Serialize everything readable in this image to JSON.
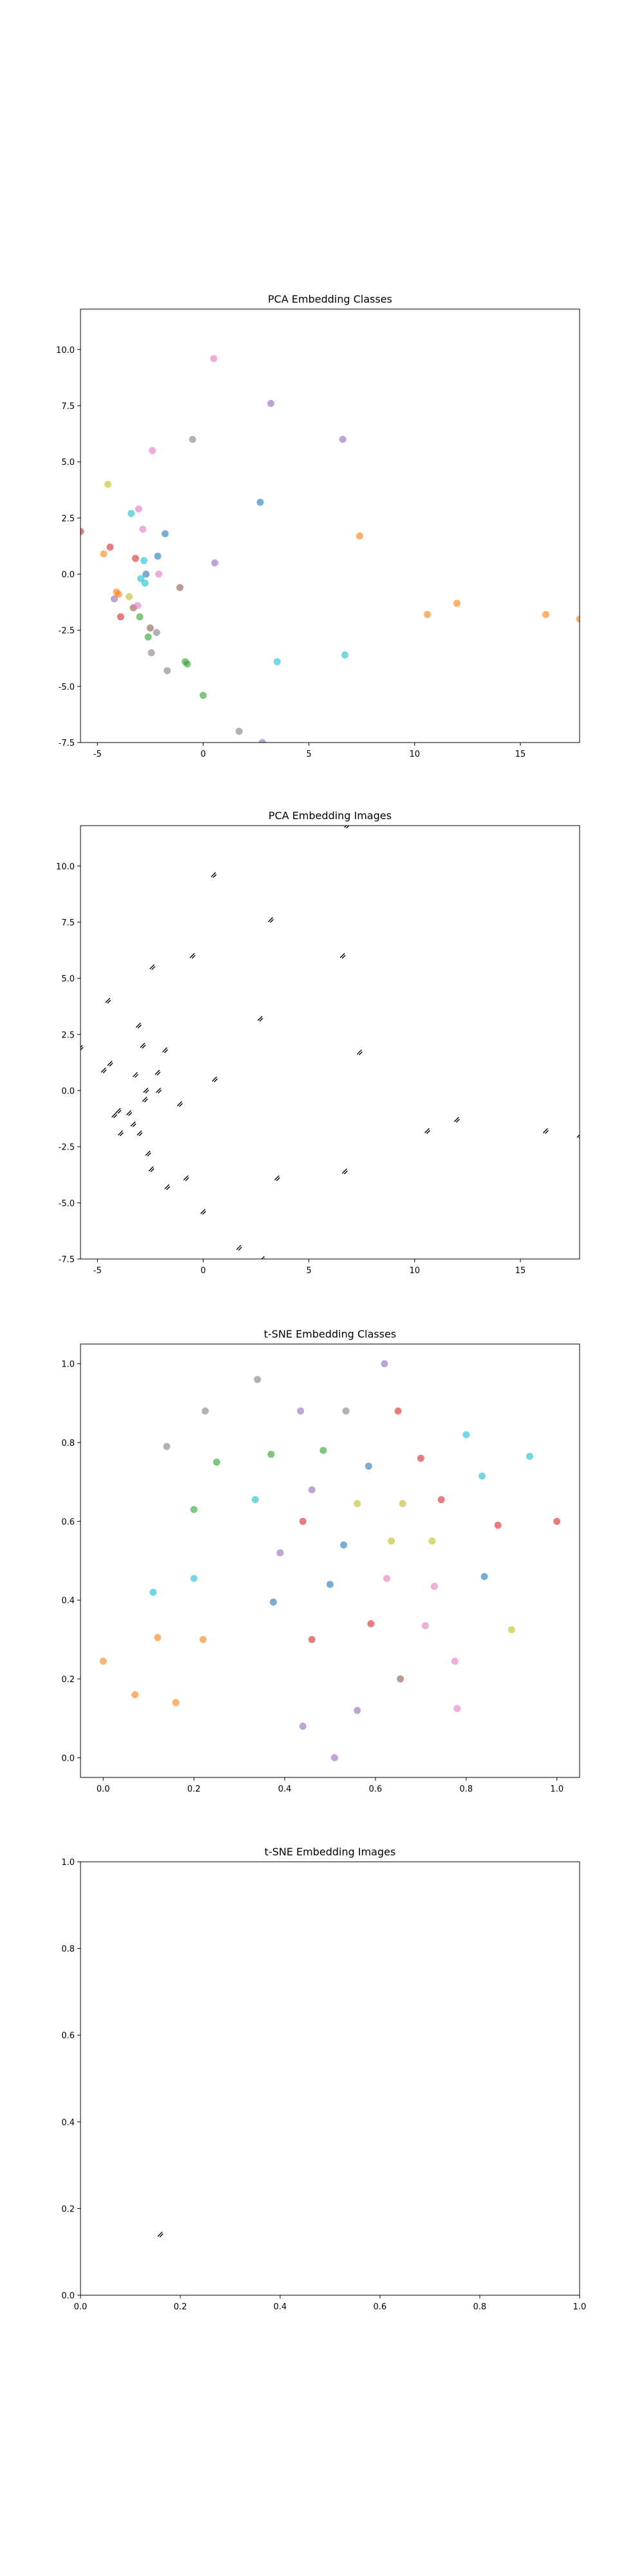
{
  "chart_data": [
    {
      "type": "scatter",
      "title": "PCA Embedding Classes",
      "xlim": [
        -5.8,
        17.8
      ],
      "ylim": [
        -7.5,
        11.8
      ],
      "xticks": [
        -5,
        0,
        5,
        10,
        15
      ],
      "yticks": [
        -7.5,
        -5.0,
        -2.5,
        0.0,
        2.5,
        5.0,
        7.5,
        10.0
      ],
      "grid": false,
      "points": [
        {
          "x": -5.8,
          "y": 1.9,
          "color": "#d62728"
        },
        {
          "x": -4.7,
          "y": 0.9,
          "color": "#ff7f0e"
        },
        {
          "x": -4.5,
          "y": 4.0,
          "color": "#bcbd22"
        },
        {
          "x": -4.4,
          "y": 1.2,
          "color": "#d62728"
        },
        {
          "x": -4.2,
          "y": -1.1,
          "color": "#9467bd"
        },
        {
          "x": -4.1,
          "y": -0.8,
          "color": "#ff7f0e"
        },
        {
          "x": -4.0,
          "y": -0.9,
          "color": "#ff7f0e"
        },
        {
          "x": -3.9,
          "y": -1.9,
          "color": "#d62728"
        },
        {
          "x": -3.5,
          "y": -1.0,
          "color": "#bcbd22"
        },
        {
          "x": -3.4,
          "y": 2.7,
          "color": "#17becf"
        },
        {
          "x": -3.3,
          "y": -1.5,
          "color": "#8c564b"
        },
        {
          "x": -3.2,
          "y": 0.7,
          "color": "#d62728"
        },
        {
          "x": -3.1,
          "y": -1.4,
          "color": "#e377c2"
        },
        {
          "x": -3.05,
          "y": 2.9,
          "color": "#e377c2"
        },
        {
          "x": -3.0,
          "y": -1.9,
          "color": "#2ca02c"
        },
        {
          "x": -2.95,
          "y": -0.2,
          "color": "#17becf"
        },
        {
          "x": -2.85,
          "y": 2.0,
          "color": "#e377c2"
        },
        {
          "x": -2.8,
          "y": 0.6,
          "color": "#17becf"
        },
        {
          "x": -2.75,
          "y": -0.4,
          "color": "#17becf"
        },
        {
          "x": -2.7,
          "y": 0.0,
          "color": "#1f77b4"
        },
        {
          "x": -2.6,
          "y": -2.8,
          "color": "#2ca02c"
        },
        {
          "x": -2.5,
          "y": -2.4,
          "color": "#8c564b"
        },
        {
          "x": -2.45,
          "y": -3.5,
          "color": "#7f7f7f"
        },
        {
          "x": -2.4,
          "y": 5.5,
          "color": "#e377c2"
        },
        {
          "x": -2.2,
          "y": -2.6,
          "color": "#7f7f7f"
        },
        {
          "x": -2.15,
          "y": 0.8,
          "color": "#1f77b4"
        },
        {
          "x": -2.1,
          "y": 0.0,
          "color": "#e377c2"
        },
        {
          "x": -1.8,
          "y": 1.8,
          "color": "#1f77b4"
        },
        {
          "x": -1.7,
          "y": -4.3,
          "color": "#7f7f7f"
        },
        {
          "x": -1.1,
          "y": -0.6,
          "color": "#8c564b"
        },
        {
          "x": -0.85,
          "y": -3.9,
          "color": "#2ca02c"
        },
        {
          "x": -0.75,
          "y": -4.0,
          "color": "#2ca02c"
        },
        {
          "x": -0.5,
          "y": 6.0,
          "color": "#7f7f7f"
        },
        {
          "x": 0.0,
          "y": -5.4,
          "color": "#2ca02c"
        },
        {
          "x": 0.5,
          "y": 9.6,
          "color": "#e377c2"
        },
        {
          "x": 0.55,
          "y": 0.5,
          "color": "#9467bd"
        },
        {
          "x": 1.7,
          "y": -7.0,
          "color": "#7f7f7f"
        },
        {
          "x": 2.7,
          "y": 3.2,
          "color": "#1f77b4"
        },
        {
          "x": 2.8,
          "y": -7.5,
          "color": "#9467bd"
        },
        {
          "x": 3.2,
          "y": 7.6,
          "color": "#9467bd"
        },
        {
          "x": 3.5,
          "y": -3.9,
          "color": "#17becf"
        },
        {
          "x": 6.6,
          "y": 6.0,
          "color": "#9467bd"
        },
        {
          "x": 6.7,
          "y": -3.6,
          "color": "#17becf"
        },
        {
          "x": 7.4,
          "y": 1.7,
          "color": "#ff7f0e"
        },
        {
          "x": 10.6,
          "y": -1.8,
          "color": "#ff7f0e"
        },
        {
          "x": 12.0,
          "y": -1.3,
          "color": "#ff7f0e"
        },
        {
          "x": 16.2,
          "y": -1.8,
          "color": "#ff7f0e"
        },
        {
          "x": 17.8,
          "y": -2.0,
          "color": "#ff7f0e"
        }
      ]
    },
    {
      "type": "scatter",
      "title": "PCA Embedding Images",
      "xlim": [
        -5.8,
        17.8
      ],
      "ylim": [
        -7.5,
        11.8
      ],
      "xticks": [
        -5,
        0,
        5,
        10,
        15
      ],
      "yticks": [
        -7.5,
        -5.0,
        -2.5,
        0.0,
        2.5,
        5.0,
        7.5,
        10.0
      ],
      "grid": false,
      "marker": "glyph",
      "points": [
        {
          "x": -5.8,
          "y": 1.9
        },
        {
          "x": -4.7,
          "y": 0.9
        },
        {
          "x": -4.5,
          "y": 4.0
        },
        {
          "x": -4.4,
          "y": 1.2
        },
        {
          "x": -4.2,
          "y": -1.1
        },
        {
          "x": -4.0,
          "y": -0.9
        },
        {
          "x": -3.9,
          "y": -1.9
        },
        {
          "x": -3.5,
          "y": -1.0
        },
        {
          "x": -3.3,
          "y": -1.5
        },
        {
          "x": -3.2,
          "y": 0.7
        },
        {
          "x": -3.05,
          "y": 2.9
        },
        {
          "x": -3.0,
          "y": -1.9
        },
        {
          "x": -2.85,
          "y": 2.0
        },
        {
          "x": -2.75,
          "y": -0.4
        },
        {
          "x": -2.7,
          "y": 0.0
        },
        {
          "x": -2.6,
          "y": -2.8
        },
        {
          "x": -2.45,
          "y": -3.5
        },
        {
          "x": -2.4,
          "y": 5.5
        },
        {
          "x": -2.15,
          "y": 0.8
        },
        {
          "x": -2.1,
          "y": 0.0
        },
        {
          "x": -1.8,
          "y": 1.8
        },
        {
          "x": -1.7,
          "y": -4.3
        },
        {
          "x": -1.1,
          "y": -0.6
        },
        {
          "x": -0.8,
          "y": -3.9
        },
        {
          "x": -0.5,
          "y": 6.0
        },
        {
          "x": 0.0,
          "y": -5.4
        },
        {
          "x": 0.5,
          "y": 9.6
        },
        {
          "x": 0.55,
          "y": 0.5
        },
        {
          "x": 1.7,
          "y": -7.0
        },
        {
          "x": 2.7,
          "y": 3.2
        },
        {
          "x": 2.8,
          "y": -7.5
        },
        {
          "x": 3.2,
          "y": 7.6
        },
        {
          "x": 3.5,
          "y": -3.9
        },
        {
          "x": 6.6,
          "y": 6.0
        },
        {
          "x": 6.7,
          "y": -3.6
        },
        {
          "x": 7.4,
          "y": 1.7
        },
        {
          "x": 10.6,
          "y": -1.8
        },
        {
          "x": 12.0,
          "y": -1.3
        },
        {
          "x": 16.2,
          "y": -1.8
        },
        {
          "x": 17.8,
          "y": -2.0
        },
        {
          "x": 6.8,
          "y": 11.8
        }
      ]
    },
    {
      "type": "scatter",
      "title": "t-SNE Embedding Classes",
      "xlim": [
        -0.05,
        1.05
      ],
      "ylim": [
        -0.05,
        1.05
      ],
      "xticks": [
        0.0,
        0.2,
        0.4,
        0.6,
        0.8,
        1.0
      ],
      "yticks": [
        0.0,
        0.2,
        0.4,
        0.6,
        0.8,
        1.0
      ],
      "grid": false,
      "points": [
        {
          "x": 0.0,
          "y": 0.245,
          "color": "#ff7f0e"
        },
        {
          "x": 0.07,
          "y": 0.16,
          "color": "#ff7f0e"
        },
        {
          "x": 0.11,
          "y": 0.42,
          "color": "#17becf"
        },
        {
          "x": 0.12,
          "y": 0.305,
          "color": "#ff7f0e"
        },
        {
          "x": 0.14,
          "y": 0.79,
          "color": "#7f7f7f"
        },
        {
          "x": 0.16,
          "y": 0.14,
          "color": "#ff7f0e"
        },
        {
          "x": 0.2,
          "y": 0.63,
          "color": "#2ca02c"
        },
        {
          "x": 0.2,
          "y": 0.455,
          "color": "#17becf"
        },
        {
          "x": 0.22,
          "y": 0.3,
          "color": "#ff7f0e"
        },
        {
          "x": 0.225,
          "y": 0.88,
          "color": "#7f7f7f"
        },
        {
          "x": 0.25,
          "y": 0.75,
          "color": "#2ca02c"
        },
        {
          "x": 0.335,
          "y": 0.655,
          "color": "#17becf"
        },
        {
          "x": 0.34,
          "y": 0.96,
          "color": "#7f7f7f"
        },
        {
          "x": 0.37,
          "y": 0.77,
          "color": "#2ca02c"
        },
        {
          "x": 0.375,
          "y": 0.395,
          "color": "#1f77b4"
        },
        {
          "x": 0.39,
          "y": 0.52,
          "color": "#9467bd"
        },
        {
          "x": 0.435,
          "y": 0.88,
          "color": "#9467bd"
        },
        {
          "x": 0.44,
          "y": 0.6,
          "color": "#d62728"
        },
        {
          "x": 0.44,
          "y": 0.08,
          "color": "#9467bd"
        },
        {
          "x": 0.46,
          "y": 0.68,
          "color": "#9467bd"
        },
        {
          "x": 0.46,
          "y": 0.3,
          "color": "#d62728"
        },
        {
          "x": 0.485,
          "y": 0.78,
          "color": "#2ca02c"
        },
        {
          "x": 0.5,
          "y": 0.44,
          "color": "#1f77b4"
        },
        {
          "x": 0.51,
          "y": 0.0,
          "color": "#9467bd"
        },
        {
          "x": 0.53,
          "y": 0.54,
          "color": "#1f77b4"
        },
        {
          "x": 0.535,
          "y": 0.88,
          "color": "#7f7f7f"
        },
        {
          "x": 0.56,
          "y": 0.12,
          "color": "#9467bd"
        },
        {
          "x": 0.56,
          "y": 0.645,
          "color": "#bcbd22"
        },
        {
          "x": 0.585,
          "y": 0.74,
          "color": "#1f77b4"
        },
        {
          "x": 0.59,
          "y": 0.34,
          "color": "#d62728"
        },
        {
          "x": 0.62,
          "y": 1.0,
          "color": "#9467bd"
        },
        {
          "x": 0.625,
          "y": 0.455,
          "color": "#e377c2"
        },
        {
          "x": 0.635,
          "y": 0.55,
          "color": "#bcbd22"
        },
        {
          "x": 0.65,
          "y": 0.88,
          "color": "#d62728"
        },
        {
          "x": 0.655,
          "y": 0.2,
          "color": "#8c564b"
        },
        {
          "x": 0.66,
          "y": 0.645,
          "color": "#bcbd22"
        },
        {
          "x": 0.7,
          "y": 0.76,
          "color": "#d62728"
        },
        {
          "x": 0.71,
          "y": 0.335,
          "color": "#e377c2"
        },
        {
          "x": 0.725,
          "y": 0.55,
          "color": "#bcbd22"
        },
        {
          "x": 0.73,
          "y": 0.435,
          "color": "#e377c2"
        },
        {
          "x": 0.745,
          "y": 0.655,
          "color": "#d62728"
        },
        {
          "x": 0.775,
          "y": 0.245,
          "color": "#e377c2"
        },
        {
          "x": 0.78,
          "y": 0.125,
          "color": "#e377c2"
        },
        {
          "x": 0.8,
          "y": 0.82,
          "color": "#17becf"
        },
        {
          "x": 0.835,
          "y": 0.715,
          "color": "#17becf"
        },
        {
          "x": 0.84,
          "y": 0.46,
          "color": "#1f77b4"
        },
        {
          "x": 0.87,
          "y": 0.59,
          "color": "#d62728"
        },
        {
          "x": 0.9,
          "y": 0.325,
          "color": "#bcbd22"
        },
        {
          "x": 0.94,
          "y": 0.765,
          "color": "#17becf"
        },
        {
          "x": 1.0,
          "y": 0.6,
          "color": "#d62728"
        }
      ]
    },
    {
      "type": "scatter",
      "title": "t-SNE Embedding Images",
      "xlim": [
        0.0,
        1.0
      ],
      "ylim": [
        0.0,
        1.0
      ],
      "xticks": [
        0.0,
        0.2,
        0.4,
        0.6,
        0.8,
        1.0
      ],
      "yticks": [
        0.0,
        0.2,
        0.4,
        0.6,
        0.8,
        1.0
      ],
      "grid": false,
      "marker": "glyph",
      "points": [
        {
          "x": 0.16,
          "y": 0.14
        }
      ]
    }
  ]
}
